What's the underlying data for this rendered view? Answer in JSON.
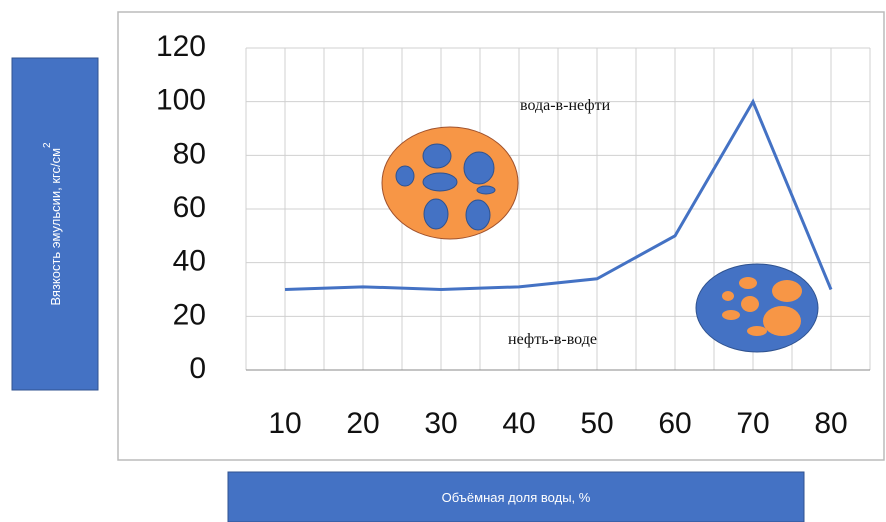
{
  "chart_data": {
    "type": "line",
    "y_label": "Вязкость эмульсии, кгс/см",
    "y_label_sup": "2",
    "x_label": "Объёмная доля воды, %",
    "annotations": [
      "вода-в-нефти",
      "нефть-в-воде"
    ],
    "categories": [
      "10",
      "20",
      "30",
      "40",
      "50",
      "60",
      "70",
      "80"
    ],
    "series": [
      {
        "color": "#4472c4",
        "values": [
          30,
          31,
          30,
          31,
          34,
          50,
          100,
          30
        ]
      }
    ],
    "ylim": [
      0,
      120
    ],
    "yticks": [
      0,
      20,
      40,
      60,
      80,
      100,
      120
    ],
    "grid": true
  }
}
